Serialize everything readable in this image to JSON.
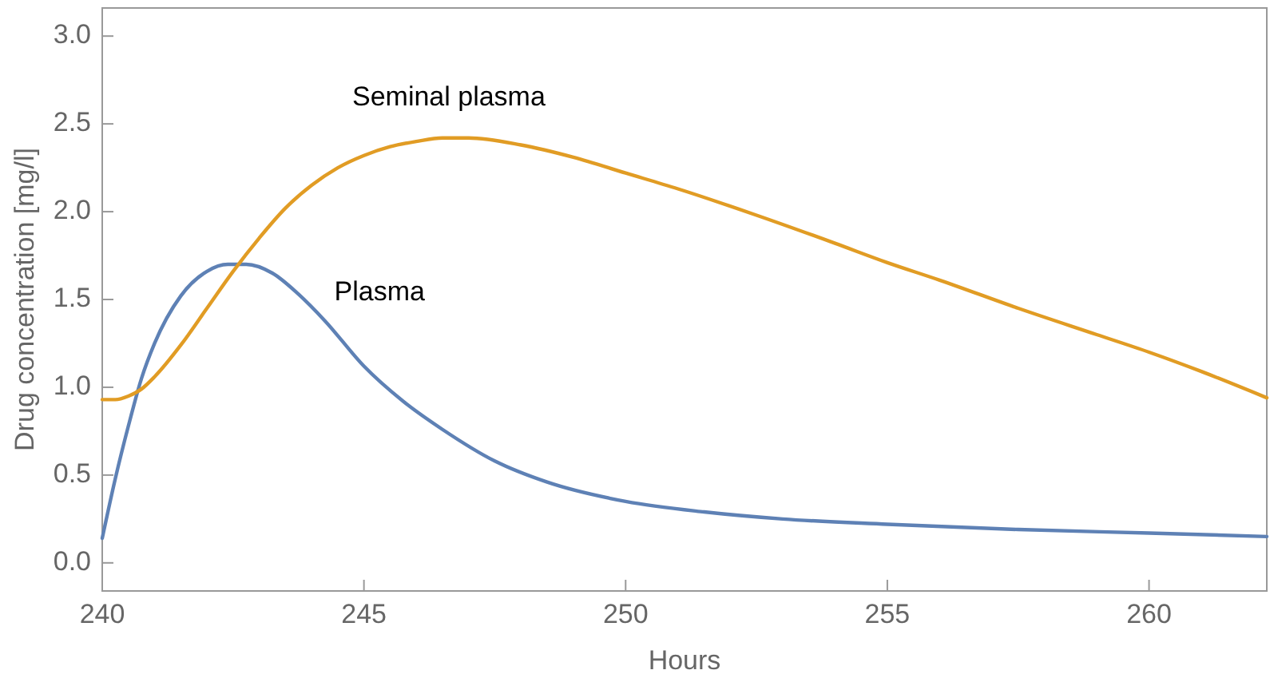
{
  "chart_data": {
    "type": "line",
    "xlabel": "Hours",
    "ylabel": "Drug concentration [mg/l]",
    "xlim": [
      240,
      262.25
    ],
    "ylim": [
      -0.16,
      3.16
    ],
    "xticks": [
      240,
      245,
      250,
      255,
      260
    ],
    "yticks": [
      {
        "value": 0,
        "label": "0.0"
      },
      0.5,
      {
        "value": 1,
        "label": "1.0"
      },
      1.5,
      {
        "value": 2,
        "label": "2.0"
      },
      2.5,
      {
        "value": 3,
        "label": "3.0"
      }
    ],
    "grid": false,
    "legend": false,
    "marker": "none",
    "line_style": "solid",
    "series": [
      {
        "name": "Plasma",
        "color": "#5e81b5",
        "x": [
          240,
          240.25,
          240.5,
          240.75,
          241,
          241.5,
          242,
          242.4,
          242.75,
          243.25,
          243.75,
          244.25,
          245,
          245.75,
          246.5,
          247.5,
          248.5,
          250,
          251.5,
          253,
          255,
          257.5,
          260,
          262.25
        ],
        "values": [
          0.14,
          0.48,
          0.78,
          1.05,
          1.25,
          1.52,
          1.66,
          1.7,
          1.7,
          1.65,
          1.53,
          1.38,
          1.12,
          0.92,
          0.76,
          0.58,
          0.46,
          0.35,
          0.29,
          0.25,
          0.22,
          0.19,
          0.17,
          0.15
        ]
      },
      {
        "name": "Seminal plasma",
        "color": "#e19c24",
        "x": [
          240,
          240.25,
          240.5,
          240.75,
          241,
          241.5,
          242,
          242.5,
          243,
          243.5,
          244,
          244.5,
          245,
          245.5,
          246,
          246.5,
          247,
          248,
          249,
          250,
          251,
          252.5,
          254,
          255,
          256,
          257.5,
          259,
          260,
          261,
          262.25
        ],
        "values": [
          0.93,
          0.93,
          0.95,
          0.99,
          1.06,
          1.24,
          1.45,
          1.66,
          1.85,
          2.02,
          2.15,
          2.25,
          2.32,
          2.37,
          2.4,
          2.42,
          2.42,
          2.38,
          2.31,
          2.22,
          2.13,
          1.98,
          1.82,
          1.71,
          1.61,
          1.45,
          1.3,
          1.2,
          1.09,
          0.94
        ]
      }
    ]
  }
}
